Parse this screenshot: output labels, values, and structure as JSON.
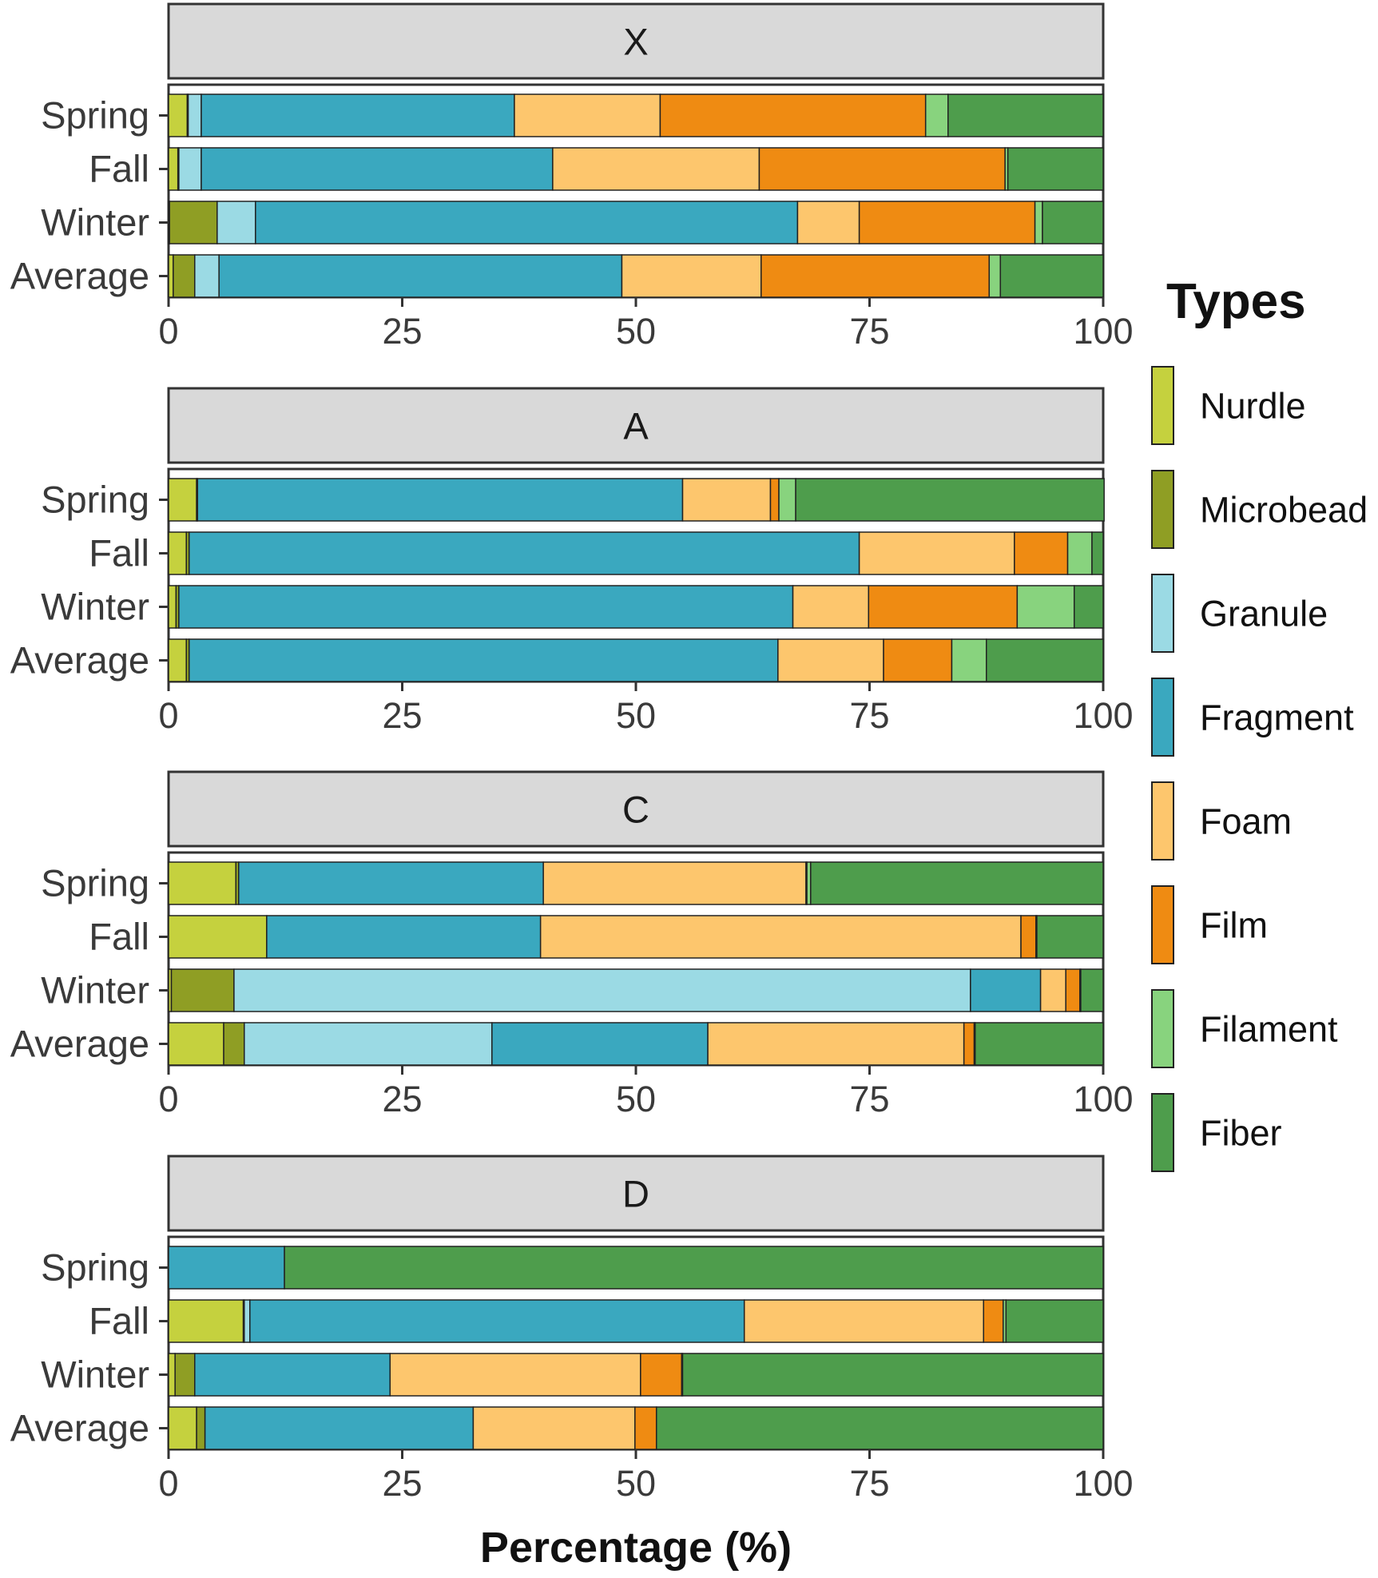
{
  "chart_data": {
    "type": "bar",
    "orientation": "horizontal",
    "stacked": true,
    "xlabel": "Percentage (%)",
    "xlim": [
      0,
      100
    ],
    "xticks": [
      0,
      25,
      50,
      75,
      100
    ],
    "legend": {
      "title": "Types",
      "position": "right",
      "entries": [
        "Nurdle",
        "Microbead",
        "Granule",
        "Fragment",
        "Foam",
        "Film",
        "Filament",
        "Fiber"
      ]
    },
    "colors": {
      "Nurdle": "#c5d13e",
      "Microbead": "#8f9e24",
      "Granule": "#9bdae4",
      "Fragment": "#3aa8bf",
      "Foam": "#fdc66d",
      "Film": "#ef8b12",
      "Filament": "#88d37e",
      "Fiber": "#4e9d4c",
      "strip_bg": "#d9d9d9"
    },
    "panels": [
      {
        "label": "X",
        "rows": [
          {
            "category": "Spring",
            "values": [
              2.0,
              0.1,
              1.4,
              33.5,
              15.6,
              28.4,
              2.4,
              16.6
            ]
          },
          {
            "category": "Fall",
            "values": [
              1.0,
              0.1,
              2.4,
              37.6,
              22.1,
              26.3,
              0.3,
              10.2
            ]
          },
          {
            "category": "Winter",
            "values": [
              0.1,
              5.1,
              4.1,
              58.0,
              6.6,
              18.8,
              0.8,
              6.5
            ]
          },
          {
            "category": "Average",
            "values": [
              0.5,
              2.3,
              2.6,
              43.1,
              14.9,
              24.4,
              1.2,
              11.0
            ]
          }
        ]
      },
      {
        "label": "A",
        "rows": [
          {
            "category": "Spring",
            "values": [
              3.0,
              0.1,
              0.0,
              51.9,
              9.4,
              0.9,
              1.8,
              33.0
            ]
          },
          {
            "category": "Fall",
            "values": [
              1.9,
              0.3,
              0.0,
              71.7,
              16.6,
              5.7,
              2.6,
              1.2
            ]
          },
          {
            "category": "Winter",
            "values": [
              0.8,
              0.3,
              0.0,
              65.7,
              8.1,
              15.9,
              6.1,
              3.1
            ]
          },
          {
            "category": "Average",
            "values": [
              1.9,
              0.3,
              0.0,
              63.0,
              11.3,
              7.3,
              3.7,
              12.5
            ]
          }
        ]
      },
      {
        "label": "C",
        "rows": [
          {
            "category": "Spring",
            "values": [
              7.2,
              0.3,
              0.0,
              32.6,
              28.1,
              0.1,
              0.4,
              31.3
            ]
          },
          {
            "category": "Fall",
            "values": [
              10.5,
              0.0,
              0.0,
              29.3,
              51.4,
              1.6,
              0.1,
              7.1
            ]
          },
          {
            "category": "Winter",
            "values": [
              0.3,
              6.7,
              78.8,
              7.5,
              2.7,
              1.5,
              0.1,
              2.4
            ]
          },
          {
            "category": "Average",
            "values": [
              5.9,
              2.2,
              26.5,
              23.1,
              27.4,
              1.1,
              0.1,
              13.7
            ]
          }
        ]
      },
      {
        "label": "D",
        "rows": [
          {
            "category": "Spring",
            "values": [
              0.0,
              0.0,
              0.0,
              12.4,
              0.0,
              0.0,
              0.0,
              87.6
            ]
          },
          {
            "category": "Fall",
            "values": [
              8.0,
              0.1,
              0.6,
              52.9,
              25.6,
              2.1,
              0.3,
              10.4
            ]
          },
          {
            "category": "Winter",
            "values": [
              0.7,
              2.1,
              0.0,
              20.9,
              26.8,
              4.4,
              0.1,
              45.0
            ]
          },
          {
            "category": "Average",
            "values": [
              3.0,
              0.9,
              0.0,
              28.7,
              17.3,
              2.3,
              0.0,
              47.8
            ]
          }
        ]
      }
    ]
  }
}
